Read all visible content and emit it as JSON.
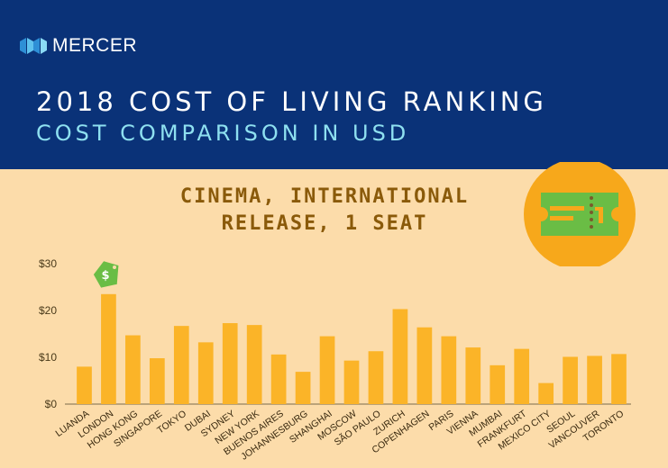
{
  "header": {
    "logo_text": "MERCER",
    "title": "2018 COST OF LIVING RANKING",
    "subtitle": "COST COMPARISON IN USD"
  },
  "icons": {
    "logo": "mercer-logo-icon",
    "ticket": "ticket-icon",
    "price_tag": "price-tag-icon",
    "price_tag_symbol": "$"
  },
  "colors": {
    "header_bg": "#0a3278",
    "background": "#fcdcaa",
    "bar": "#fbb428",
    "title_text": "#8a5a0a",
    "subtitle_text": "#8ee0f0",
    "badge": "#f7a81b",
    "ticket": "#6abd45",
    "tag": "#6abd45"
  },
  "chart_data": {
    "type": "bar",
    "title": "CINEMA, INTERNATIONAL RELEASE, 1 SEAT",
    "categories": [
      "LUANDA",
      "LONDON",
      "HONG KONG",
      "SINGAPORE",
      "TOKYO",
      "DUBAI",
      "SYDNEY",
      "NEW YORK",
      "BUENOS AIRES",
      "JOHANNESBURG",
      "SHANGHAI",
      "MOSCOW",
      "SÃO PAULO",
      "ZURICH",
      "COPENHAGEN",
      "PARIS",
      "VIENNA",
      "MUMBAI",
      "FRANKFURT",
      "MEXICO CITY",
      "SEOUL",
      "VANCOUVER",
      "TORONTO"
    ],
    "values": [
      8,
      23.5,
      14.7,
      9.8,
      16.7,
      13.2,
      17.3,
      16.9,
      10.6,
      6.9,
      14.5,
      9.3,
      11.3,
      20.3,
      16.4,
      14.5,
      12.1,
      8.3,
      11.8,
      4.5,
      10.1,
      10.3,
      10.7
    ],
    "ylim": [
      0,
      30
    ],
    "yticks": [
      "$0",
      "$10",
      "$20",
      "$30"
    ],
    "ytick_values": [
      0,
      10,
      20,
      30
    ],
    "xlabel": "",
    "ylabel": "",
    "grid": false,
    "highlight": "LONDON"
  }
}
